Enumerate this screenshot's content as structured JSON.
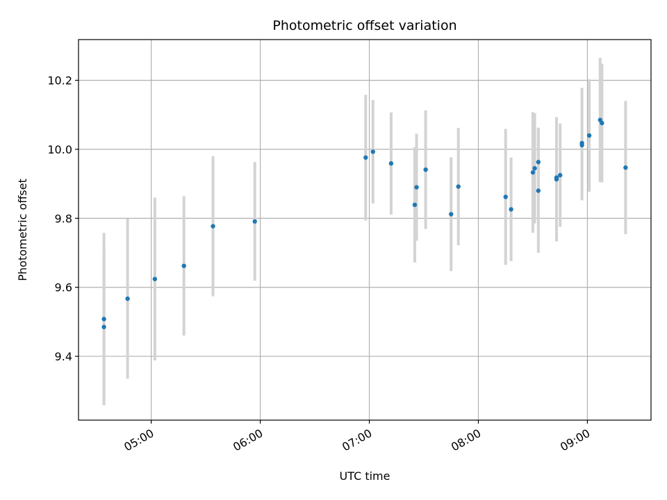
{
  "chart_data": {
    "type": "scatter",
    "title": "Photometric offset variation",
    "xlabel": "UTC time",
    "ylabel": "Photometric offset",
    "x_ticks": [
      "05:00",
      "06:00",
      "07:00",
      "08:00",
      "09:00"
    ],
    "y_ticks": [
      "9.4",
      "9.6",
      "9.8",
      "10.0",
      "10.2"
    ],
    "x_tick_values": [
      "05:00",
      "06:00",
      "07:00",
      "08:00",
      "09:00"
    ],
    "y_tick_values": [
      9.4,
      9.6,
      9.8,
      10.0,
      10.2
    ],
    "xlim": [
      "04:20",
      "09:35"
    ],
    "ylim": [
      9.215,
      10.318
    ],
    "grid": true,
    "error_bar_color": "#d3d3d3",
    "point_color": "#1f77b4",
    "points": [
      {
        "x": "04:34",
        "y": 9.508,
        "err": 0.25
      },
      {
        "x": "04:34",
        "y": 9.485,
        "err": 0.22
      },
      {
        "x": "04:47",
        "y": 9.567,
        "err": 0.232
      },
      {
        "x": "05:02",
        "y": 9.624,
        "err": 0.236
      },
      {
        "x": "05:18",
        "y": 9.662,
        "err": 0.202
      },
      {
        "x": "05:34",
        "y": 9.777,
        "err": 0.203
      },
      {
        "x": "05:57",
        "y": 9.791,
        "err": 0.172
      },
      {
        "x": "06:58",
        "y": 9.976,
        "err": 0.182
      },
      {
        "x": "07:02",
        "y": 9.993,
        "err": 0.15
      },
      {
        "x": "07:12",
        "y": 9.959,
        "err": 0.148
      },
      {
        "x": "07:25",
        "y": 9.839,
        "err": 0.167
      },
      {
        "x": "07:26",
        "y": 9.89,
        "err": 0.155
      },
      {
        "x": "07:31",
        "y": 9.941,
        "err": 0.172
      },
      {
        "x": "07:45",
        "y": 9.812,
        "err": 0.165
      },
      {
        "x": "07:49",
        "y": 9.892,
        "err": 0.17
      },
      {
        "x": "08:15",
        "y": 9.862,
        "err": 0.197
      },
      {
        "x": "08:18",
        "y": 9.826,
        "err": 0.15
      },
      {
        "x": "08:30",
        "y": 9.933,
        "err": 0.175
      },
      {
        "x": "08:31",
        "y": 9.945,
        "err": 0.16
      },
      {
        "x": "08:33",
        "y": 9.88,
        "err": 0.18
      },
      {
        "x": "08:33",
        "y": 9.963,
        "err": 0.1
      },
      {
        "x": "08:43",
        "y": 9.918,
        "err": 0.175
      },
      {
        "x": "08:43",
        "y": 9.913,
        "err": 0.18
      },
      {
        "x": "08:45",
        "y": 9.925,
        "err": 0.15
      },
      {
        "x": "08:57",
        "y": 10.018,
        "err": 0.16
      },
      {
        "x": "08:57",
        "y": 10.012,
        "err": 0.16
      },
      {
        "x": "09:01",
        "y": 10.04,
        "err": 0.163
      },
      {
        "x": "09:07",
        "y": 10.085,
        "err": 0.18
      },
      {
        "x": "09:08",
        "y": 10.076,
        "err": 0.172
      },
      {
        "x": "09:21",
        "y": 9.947,
        "err": 0.193
      }
    ]
  }
}
